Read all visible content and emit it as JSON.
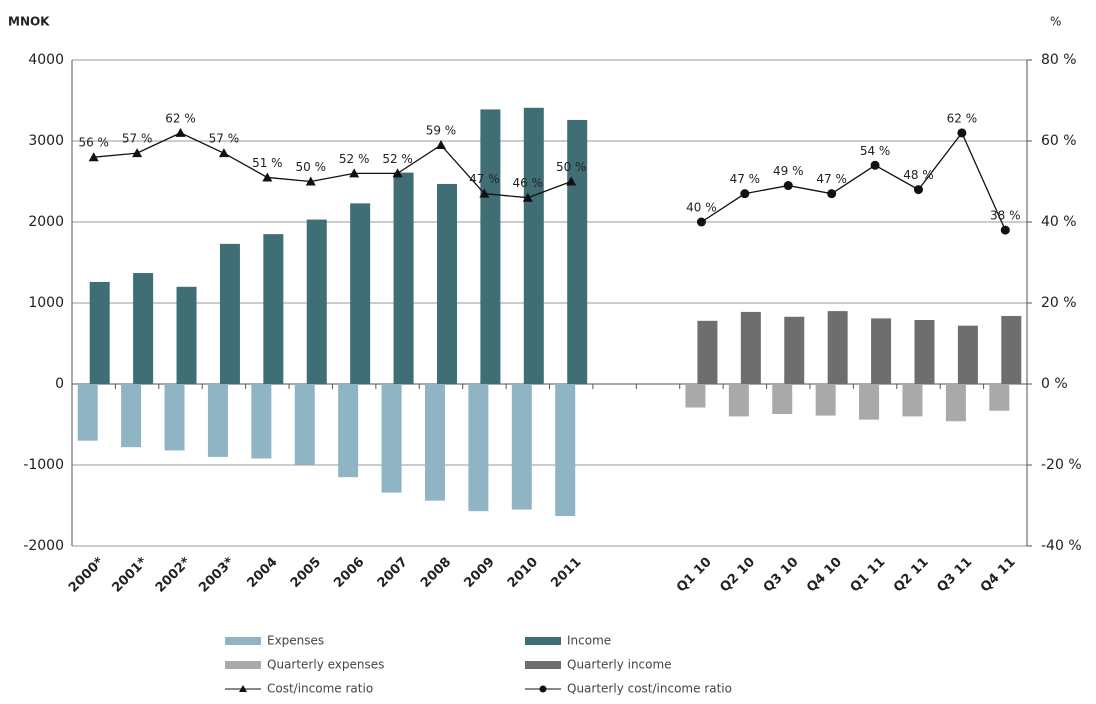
{
  "chart_data": {
    "type": "bar",
    "y_axis_label": "MNOK",
    "y2_axis_label": "%",
    "categories": [
      "2000*",
      "2001*",
      "2002*",
      "2003*",
      "2004",
      "2005",
      "2006",
      "2007",
      "2008",
      "2009",
      "2010",
      "2011",
      null,
      null,
      "Q1 10",
      "Q2 10",
      "Q3 10",
      "Q4 10",
      "Q1 11",
      "Q2 11",
      "Q3 11",
      "Q4 11"
    ],
    "ylim": [
      -2000,
      4000
    ],
    "yticks": [
      -2000,
      -1000,
      0,
      1000,
      2000,
      3000,
      4000
    ],
    "y2lim": [
      -40,
      80
    ],
    "y2ticks": [
      {
        "value": -40,
        "label": "-40 %"
      },
      {
        "value": -20,
        "label": "-20 %"
      },
      {
        "value": 0,
        "label": "0 %"
      },
      {
        "value": 20,
        "label": "20 %"
      },
      {
        "value": 40,
        "label": "40 %"
      },
      {
        "value": 60,
        "label": "60 %"
      },
      {
        "value": 80,
        "label": "80 %"
      }
    ],
    "grid": true,
    "series": [
      {
        "name": "Expenses",
        "type": "bar",
        "color": "#8fb4c4",
        "values": [
          -700,
          -780,
          -820,
          -900,
          -920,
          -1000,
          -1150,
          -1340,
          -1440,
          -1570,
          -1550,
          -1630,
          null,
          null,
          null,
          null,
          null,
          null,
          null,
          null,
          null,
          null
        ]
      },
      {
        "name": "Income",
        "type": "bar",
        "color": "#3f6e74",
        "values": [
          1260,
          1370,
          1200,
          1730,
          1850,
          2030,
          2230,
          2610,
          2470,
          3390,
          3410,
          3260,
          null,
          null,
          null,
          null,
          null,
          null,
          null,
          null,
          null,
          null
        ]
      },
      {
        "name": "Quarterly expenses",
        "type": "bar",
        "color": "#a9a9a9",
        "values": [
          null,
          null,
          null,
          null,
          null,
          null,
          null,
          null,
          null,
          null,
          null,
          null,
          null,
          null,
          -290,
          -400,
          -370,
          -390,
          -440,
          -400,
          -460,
          -330
        ]
      },
      {
        "name": "Quarterly income",
        "type": "bar",
        "color": "#6e6e6e",
        "values": [
          null,
          null,
          null,
          null,
          null,
          null,
          null,
          null,
          null,
          null,
          null,
          null,
          null,
          null,
          780,
          890,
          830,
          900,
          810,
          790,
          720,
          840
        ]
      },
      {
        "name": "Cost/income ratio",
        "type": "line",
        "marker": "triangle",
        "axis": "y2",
        "color": "#111",
        "values": [
          56,
          57,
          62,
          57,
          51,
          50,
          52,
          52,
          59,
          47,
          46,
          50,
          null,
          null,
          null,
          null,
          null,
          null,
          null,
          null,
          null,
          null
        ],
        "value_labels": [
          "56 %",
          "57 %",
          "62 %",
          "57 %",
          "51 %",
          "50 %",
          "52 %",
          "52 %",
          "59 %",
          "47 %",
          "46 %",
          "50 %",
          null,
          null,
          null,
          null,
          null,
          null,
          null,
          null,
          null,
          null
        ]
      },
      {
        "name": "Quarterly cost/income ratio",
        "type": "line",
        "marker": "circle",
        "axis": "y2",
        "color": "#111",
        "values": [
          null,
          null,
          null,
          null,
          null,
          null,
          null,
          null,
          null,
          null,
          null,
          null,
          null,
          null,
          40,
          47,
          49,
          47,
          54,
          48,
          62,
          38
        ],
        "value_labels": [
          null,
          null,
          null,
          null,
          null,
          null,
          null,
          null,
          null,
          null,
          null,
          null,
          null,
          null,
          "40 %",
          "47 %",
          "49 %",
          "47 %",
          "54 %",
          "48 %",
          "62 %",
          "38 %"
        ]
      }
    ]
  }
}
